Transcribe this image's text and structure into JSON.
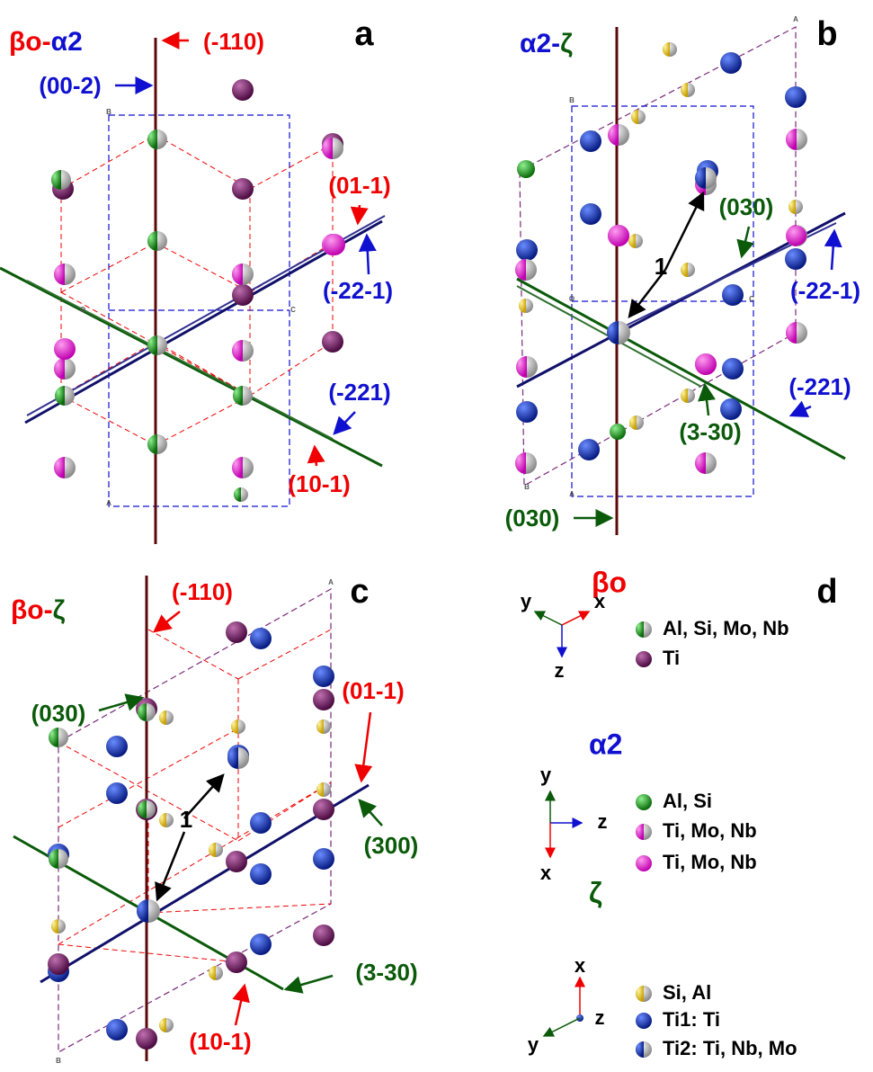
{
  "panels": [
    {
      "label": "a",
      "title": [
        "βo",
        "-",
        "α2"
      ],
      "annotations": [
        "(-110)",
        "(00-2)",
        "(01-1)",
        "(-22-1)",
        "(-221)",
        "(10-1)"
      ],
      "corner_labels": [
        "B",
        "O",
        "C",
        "A"
      ]
    },
    {
      "label": "b",
      "title": [
        "α2",
        "-",
        "ζ"
      ],
      "annotations": [
        "(030)",
        "1",
        "(-22-1)",
        "(-221)",
        "(3-30)",
        "(030)"
      ],
      "corner_labels": [
        "A",
        "B",
        "O",
        "C",
        "B",
        "A"
      ]
    },
    {
      "label": "c",
      "title": [
        "βo",
        "-",
        "ζ"
      ],
      "annotations": [
        "(-110)",
        "(030)",
        "(01-1)",
        "(300)",
        "1",
        "(3-30)",
        "(10-1)"
      ],
      "corner_labels": [
        "A",
        "B"
      ]
    }
  ],
  "legend": {
    "label": "d",
    "groups": [
      {
        "heading": "βo",
        "axes": [
          "y",
          "x",
          "z"
        ],
        "entries": [
          "Al, Si, Mo, Nb",
          "Ti"
        ]
      },
      {
        "heading": "α2",
        "axes": [
          "y",
          "z",
          "x"
        ],
        "entries": [
          "Al, Si",
          "Ti, Mo, Nb",
          "Ti, Mo, Nb"
        ]
      },
      {
        "heading": "ζ",
        "axes": [
          "x",
          "z",
          "y"
        ],
        "entries": [
          "Si, Al",
          "Ti1: Ti",
          "Ti2: Ti, Nb, Mo"
        ]
      }
    ]
  }
}
